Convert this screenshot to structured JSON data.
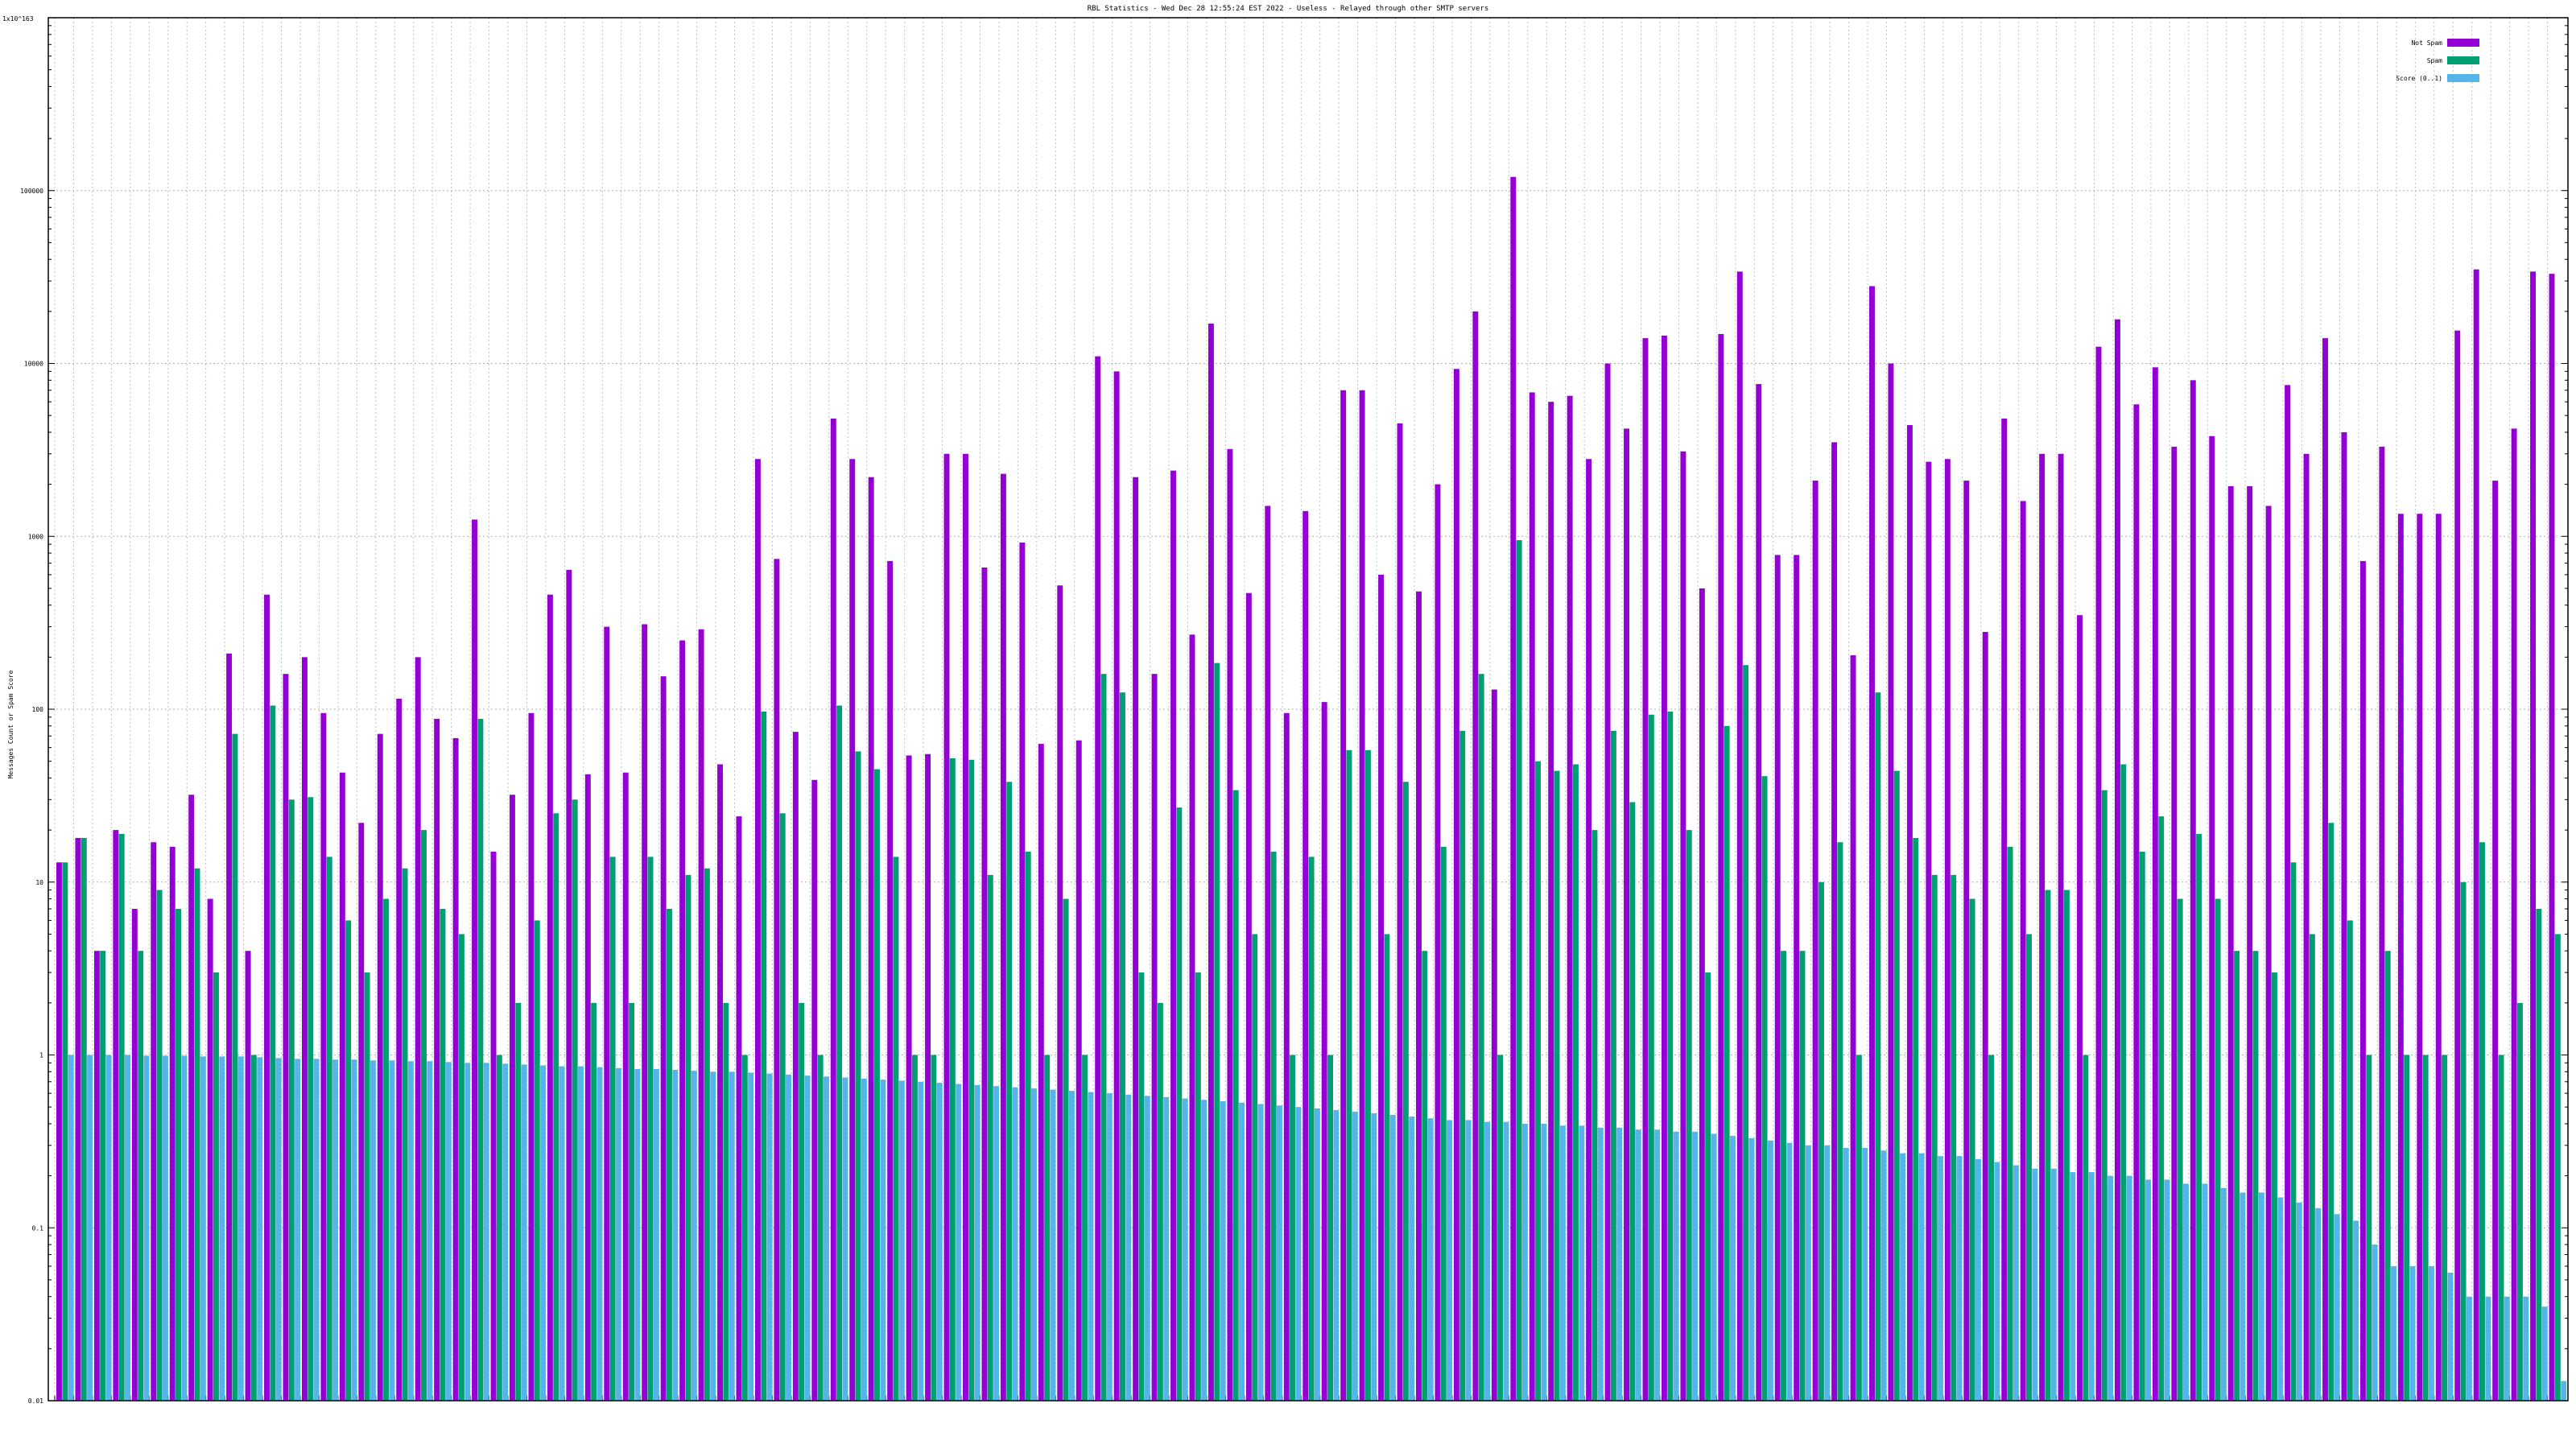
{
  "chart_data": {
    "type": "bar",
    "title": "RBL Statistics - Wed Dec 28 12:55:24 EST 2022 - Useless - Relayed through other SMTP servers",
    "ylabel": "Messages Count or Spam Score",
    "ytop_label": "1x10^163",
    "yscale": "log",
    "ylim": [
      0.01,
      1000000
    ],
    "yticks": [
      "0.01",
      "0.1",
      "1",
      "10",
      "100",
      "1000",
      "10000",
      "100000"
    ],
    "legend_position": "top-right",
    "colors": {
      "not_spam": "#9400d3",
      "spam": "#009e73",
      "score": "#56b4e9"
    },
    "series": [
      {
        "name": "Not Spam",
        "values": [
          13,
          18,
          4,
          20,
          7,
          17,
          16,
          32,
          8,
          210,
          4,
          460,
          160,
          200,
          95,
          43,
          22,
          72,
          115,
          200,
          88,
          68,
          1250,
          15,
          32,
          95,
          460,
          640,
          42,
          300,
          43,
          310,
          155,
          250,
          290,
          48,
          24,
          2800,
          740,
          74,
          39,
          4800,
          2800,
          2200,
          720,
          54,
          55,
          3000,
          3000,
          660,
          2300,
          920,
          63,
          520,
          66,
          11000,
          9000,
          2200,
          160,
          2400,
          270,
          17000,
          3200,
          470,
          1500,
          95,
          1400,
          110,
          7000,
          7000,
          600,
          4500,
          480,
          2000,
          9300,
          20000,
          130,
          120000,
          6800,
          6000,
          6500,
          2800,
          10000,
          4200,
          14000,
          14500,
          3100,
          500,
          14800,
          34000,
          7600,
          780,
          780,
          2100,
          3500,
          205,
          28000,
          10000,
          4400,
          2700,
          2800,
          2100,
          280,
          4800,
          1600,
          3000,
          3000,
          350,
          12500,
          18000,
          5800,
          9500,
          3300,
          8000,
          3800,
          1950,
          1950,
          1500,
          7500,
          3000,
          14000,
          4000,
          720,
          3300,
          1350,
          1350,
          1350,
          15500,
          35000,
          2100,
          4200,
          34000,
          33000
        ]
      },
      {
        "name": "Spam",
        "values": [
          13,
          18,
          4,
          19,
          4,
          9,
          7,
          12,
          3,
          72,
          1,
          105,
          30,
          31,
          14,
          6,
          3,
          8,
          12,
          20,
          7,
          5,
          88,
          1,
          2,
          6,
          25,
          30,
          2,
          14,
          2,
          14,
          7,
          11,
          12,
          2,
          1,
          97,
          25,
          2,
          1,
          105,
          57,
          45,
          14,
          1,
          1,
          52,
          51,
          11,
          38,
          15,
          1,
          8,
          1,
          160,
          125,
          3,
          2,
          27,
          3,
          185,
          34,
          5,
          15,
          1,
          14,
          1,
          58,
          58,
          5,
          38,
          4,
          16,
          75,
          160,
          1,
          950,
          50,
          44,
          48,
          20,
          75,
          29,
          93,
          97,
          20,
          3,
          80,
          180,
          41,
          4,
          4,
          10,
          17,
          1,
          125,
          44,
          18,
          11,
          11,
          8,
          1,
          16,
          5,
          9,
          9,
          1,
          34,
          48,
          15,
          24,
          8,
          19,
          8,
          4,
          4,
          3,
          13,
          5,
          22,
          6,
          1,
          4,
          1,
          1,
          1,
          10,
          17,
          1,
          2,
          7,
          5
        ]
      },
      {
        "name": "Score (0..1)",
        "values": [
          1.0,
          1.0,
          1.0,
          1.0,
          0.99,
          0.99,
          0.99,
          0.98,
          0.98,
          0.98,
          0.97,
          0.96,
          0.95,
          0.95,
          0.94,
          0.94,
          0.93,
          0.93,
          0.92,
          0.92,
          0.91,
          0.9,
          0.9,
          0.89,
          0.88,
          0.87,
          0.86,
          0.86,
          0.85,
          0.84,
          0.83,
          0.83,
          0.82,
          0.81,
          0.8,
          0.8,
          0.79,
          0.78,
          0.77,
          0.76,
          0.75,
          0.74,
          0.73,
          0.72,
          0.71,
          0.7,
          0.69,
          0.68,
          0.67,
          0.66,
          0.65,
          0.64,
          0.63,
          0.62,
          0.61,
          0.6,
          0.59,
          0.58,
          0.57,
          0.56,
          0.55,
          0.54,
          0.53,
          0.52,
          0.51,
          0.5,
          0.49,
          0.48,
          0.47,
          0.46,
          0.45,
          0.44,
          0.43,
          0.42,
          0.42,
          0.41,
          0.41,
          0.4,
          0.4,
          0.39,
          0.39,
          0.38,
          0.38,
          0.37,
          0.37,
          0.36,
          0.36,
          0.35,
          0.34,
          0.33,
          0.32,
          0.31,
          0.3,
          0.3,
          0.29,
          0.29,
          0.28,
          0.27,
          0.27,
          0.26,
          0.26,
          0.25,
          0.24,
          0.23,
          0.22,
          0.22,
          0.21,
          0.21,
          0.2,
          0.2,
          0.19,
          0.19,
          0.18,
          0.18,
          0.17,
          0.16,
          0.16,
          0.15,
          0.14,
          0.13,
          0.12,
          0.11,
          0.08,
          0.06,
          0.06,
          0.06,
          0.055,
          0.04,
          0.04,
          0.04,
          0.04,
          0.035,
          0.013
        ]
      }
    ]
  }
}
